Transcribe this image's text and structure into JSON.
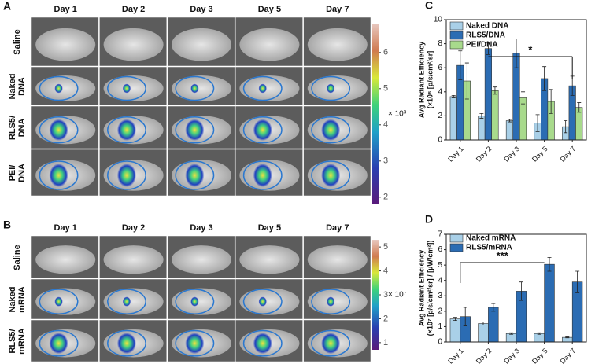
{
  "panels": [
    {
      "label": "A",
      "columns": [
        "Day 1",
        "Day 2",
        "Day 3",
        "Day 5",
        "Day 7"
      ],
      "rows": [
        [
          "Saline"
        ],
        [
          "Naked",
          "DNA"
        ],
        [
          "RLS5/",
          "DNA"
        ],
        [
          "PEI/",
          "DNA"
        ]
      ],
      "colorbar": {
        "lim": [
          1.8,
          6.8
        ],
        "ticks": [
          2,
          3,
          4,
          5,
          6
        ],
        "unit": "× 10³"
      }
    },
    {
      "label": "B",
      "columns": [
        "Day 1",
        "Day 2",
        "Day 3",
        "Day 5",
        "Day 7"
      ],
      "rows": [
        [
          "Saline"
        ],
        [
          "Naked",
          "mRNA"
        ],
        [
          "RLS5/",
          "mRNA"
        ]
      ],
      "colorbar": {
        "lim": [
          0.7,
          5.3
        ],
        "ticks": [
          1,
          2,
          3,
          4,
          5
        ],
        "unit": "× 10⁷"
      }
    }
  ],
  "chart_data": [
    {
      "type": "bar",
      "label": "C",
      "ylabel": [
        "Avg Radiant Efficiency",
        "(×10⁸ [p/s/cm²/sr]"
      ],
      "categories": [
        "Day 1",
        "Day 2",
        "Day 3",
        "Day 5",
        "Day 7"
      ],
      "series": [
        {
          "name": "Naked DNA",
          "color": "#a9d0e8",
          "values": [
            3.6,
            2.0,
            1.6,
            1.4,
            1.1
          ],
          "errors": [
            0.1,
            0.2,
            0.1,
            0.7,
            0.5
          ]
        },
        {
          "name": "RLS5/DNA",
          "color": "#2b6cb3",
          "values": [
            6.2,
            7.6,
            7.2,
            5.1,
            4.5
          ],
          "errors": [
            1.2,
            0.5,
            1.2,
            1.0,
            0.8
          ]
        },
        {
          "name": "PEI/DNA",
          "color": "#a8da8c",
          "values": [
            4.9,
            4.1,
            3.5,
            3.2,
            2.7
          ],
          "errors": [
            1.5,
            0.3,
            0.5,
            1.0,
            0.4
          ]
        }
      ],
      "ylim": [
        0,
        10
      ],
      "yticks": [
        0,
        2,
        4,
        6,
        8,
        10
      ],
      "annotation": "*"
    },
    {
      "type": "bar",
      "label": "D",
      "ylabel": [
        "Avg Radiant Efficiency",
        "(×10⁷ [p/s/cm²/sr] / [µW/cm²])"
      ],
      "categories": [
        "Day 1",
        "Day 2",
        "Day 3",
        "Day 5",
        "Day 7"
      ],
      "series": [
        {
          "name": "Naked mRNA",
          "color": "#a9d0e8",
          "values": [
            1.5,
            1.2,
            0.55,
            0.55,
            0.3
          ],
          "errors": [
            0.1,
            0.1,
            0.05,
            0.05,
            0.03
          ]
        },
        {
          "name": "RLS5/mRNA",
          "color": "#2b6cb3",
          "values": [
            1.65,
            2.25,
            3.3,
            5.05,
            3.9
          ],
          "errors": [
            0.6,
            0.25,
            0.6,
            0.45,
            0.7
          ]
        }
      ],
      "ylim": [
        0,
        7
      ],
      "yticks": [
        0,
        1,
        2,
        3,
        4,
        5,
        6,
        7
      ],
      "annotation": "***"
    }
  ]
}
